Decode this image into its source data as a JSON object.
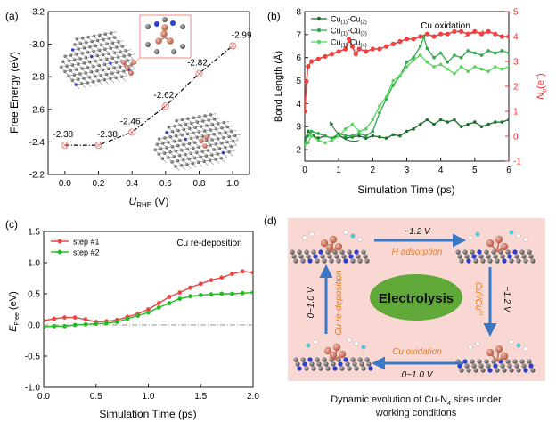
{
  "colors": {
    "axis": "#1a1a1a",
    "panel_a_line": "#000000",
    "panel_a_marker": "#f08a8a",
    "inset_border": "#f08a8a",
    "cu_atom": "#d4806a",
    "carbon_atom": "#6e6e6e",
    "nitrogen_atom": "#2a3fcf",
    "red_series": "#f04040",
    "dark_green": "#1f6e2e",
    "mid_green": "#2fa84f",
    "light_green": "#55d65a",
    "right_axis_red": "#ff2a2a",
    "step1": "#ee4444",
    "step2": "#22bb22",
    "refline": "#8a9a8a",
    "panel_d_bg": "#f9d7d2",
    "ellipse": "#60a838",
    "arrow_blue": "#3a78c6",
    "orange_text": "#e87a1c"
  },
  "panels": {
    "a": {
      "letter": "(a)"
    },
    "b": {
      "letter": "(b)"
    },
    "c": {
      "letter": "(c)"
    },
    "d": {
      "letter": "(d)"
    }
  },
  "chart_data": [
    {
      "id": "a",
      "type": "line",
      "title": "",
      "ylabel": "Free Energy (eV)",
      "xlabel": {
        "main": "U",
        "sub": "RHE",
        "unit": " (V)"
      },
      "xlim": [
        -0.1,
        1.1
      ],
      "ylim": [
        -2.2,
        -3.2
      ],
      "y_inverted": true,
      "xticks": [
        "0.0",
        "0.2",
        "0.4",
        "0.6",
        "0.8",
        "1.0"
      ],
      "yticks": [
        "-3.2",
        "-3.0",
        "-2.8",
        "-2.6",
        "-2.4",
        "-2.2"
      ],
      "x": [
        0.0,
        0.2,
        0.4,
        0.6,
        0.8,
        1.0
      ],
      "y": [
        -2.38,
        -2.38,
        -2.46,
        -2.62,
        -2.82,
        -2.99
      ],
      "point_labels": [
        "-2.38",
        "-2.38",
        "-2.46",
        "-2.62",
        "-2.82",
        "-2.99"
      ]
    },
    {
      "id": "b",
      "type": "line",
      "title": "Cu oxidation",
      "xlabel": "Simulation Time (ps)",
      "ylabel": "Bond Length (Å)",
      "ylabel_right": {
        "main": "N",
        "sub": "e",
        "unit": "(e",
        "sup": "−",
        "close": ")"
      },
      "xlim": [
        0,
        6
      ],
      "ylim": [
        1.5,
        8
      ],
      "y2lim": [
        -1,
        5
      ],
      "xticks": [
        "0",
        "1",
        "2",
        "3",
        "4",
        "5",
        "6"
      ],
      "yticks": [
        "2",
        "3",
        "4",
        "5",
        "6",
        "7",
        "8"
      ],
      "y2ticks": [
        "-1",
        "0",
        "1",
        "2",
        "3",
        "4",
        "5"
      ],
      "legend": [
        {
          "pre": "Cu",
          "s1": "(1)",
          "mid": "-Cu",
          "s2": "(2)"
        },
        {
          "pre": "Cu",
          "s1": "(1)",
          "mid": "-Cu",
          "s2": "(3)"
        },
        {
          "pre": "Cu",
          "s1": "(1)",
          "mid": "-Cu",
          "s2": "(4)"
        }
      ],
      "series": [
        {
          "name": "Cu(1)-Cu(2)",
          "axis": "left",
          "x": [
            0,
            0.1,
            0.25,
            0.4,
            0.6,
            0.8,
            1.0,
            1.2,
            1.4,
            1.6,
            1.8,
            2.0,
            2.2,
            2.4,
            2.6,
            2.8,
            3.0,
            3.2,
            3.4,
            3.6,
            3.8,
            4.0,
            4.2,
            4.4,
            4.6,
            4.8,
            5.0,
            5.2,
            5.4,
            5.6,
            5.8,
            6.0
          ],
          "y": [
            2.4,
            2.8,
            2.6,
            2.5,
            2.6,
            2.5,
            2.6,
            2.5,
            2.55,
            2.6,
            2.5,
            2.6,
            2.55,
            2.5,
            2.65,
            2.6,
            2.8,
            2.9,
            3.1,
            3.3,
            3.1,
            3.3,
            3.2,
            3.3,
            3.0,
            3.1,
            3.2,
            3.0,
            3.1,
            3.2,
            3.2,
            3.3
          ]
        },
        {
          "name": "Cu(1)-Cu(3)",
          "axis": "left",
          "x": [
            0,
            0.1,
            0.2,
            0.4,
            0.6,
            0.8,
            1.0,
            1.2,
            1.4,
            1.6,
            1.8,
            2.0,
            2.2,
            2.4,
            2.6,
            2.8,
            3.0,
            3.2,
            3.4,
            3.5,
            3.6,
            3.8,
            4.0,
            4.2,
            4.4,
            4.6,
            4.8,
            5.0,
            5.2,
            5.4,
            5.6,
            5.8,
            6.0
          ],
          "y": [
            2.3,
            2.6,
            2.8,
            2.7,
            2.6,
            2.5,
            2.7,
            2.6,
            2.6,
            2.7,
            2.6,
            2.8,
            3.6,
            4.2,
            4.8,
            5.2,
            5.8,
            6.0,
            6.5,
            6.9,
            6.4,
            6.0,
            6.2,
            5.8,
            6.1,
            6.0,
            6.3,
            6.2,
            6.1,
            6.3,
            6.2,
            6.3,
            6.2
          ]
        },
        {
          "name": "Cu(1)-Cu(4)",
          "axis": "left",
          "x": [
            0,
            0.1,
            0.2,
            0.4,
            0.6,
            0.8,
            1.0,
            1.2,
            1.4,
            1.6,
            1.8,
            2.0,
            2.2,
            2.4,
            2.6,
            2.8,
            3.0,
            3.2,
            3.4,
            3.6,
            3.8,
            4.0,
            4.2,
            4.4,
            4.6,
            4.8,
            5.0,
            5.2,
            5.4,
            5.6,
            5.8,
            6.0
          ],
          "y": [
            2.2,
            2.3,
            2.6,
            2.4,
            2.3,
            2.4,
            2.6,
            2.9,
            3.1,
            2.8,
            2.9,
            3.3,
            3.9,
            4.3,
            5.0,
            5.2,
            5.6,
            5.9,
            6.1,
            5.8,
            5.6,
            5.7,
            5.5,
            5.3,
            5.6,
            5.4,
            5.6,
            5.5,
            5.4,
            5.6,
            5.5,
            5.6
          ]
        },
        {
          "name": "Ne",
          "axis": "right",
          "x": [
            0,
            0.05,
            0.1,
            0.2,
            0.4,
            0.6,
            0.8,
            1.0,
            1.2,
            1.3,
            1.4,
            1.5,
            1.6,
            1.8,
            2.0,
            2.2,
            2.4,
            2.6,
            2.8,
            3.0,
            3.2,
            3.4,
            3.6,
            3.8,
            4.0,
            4.2,
            4.4,
            4.6,
            4.8,
            5.0,
            5.2,
            5.4,
            5.6,
            5.8,
            6.0
          ],
          "y": [
            1.0,
            2.2,
            2.8,
            3.0,
            3.1,
            3.2,
            3.3,
            3.4,
            3.5,
            3.9,
            3.6,
            3.3,
            3.5,
            3.4,
            3.5,
            3.5,
            3.6,
            3.7,
            3.8,
            3.9,
            3.9,
            4.0,
            4.1,
            4.0,
            4.1,
            4.1,
            4.2,
            4.2,
            4.1,
            4.2,
            4.1,
            4.2,
            4.1,
            4.0,
            4.0
          ]
        }
      ]
    },
    {
      "id": "c",
      "type": "line",
      "title": "Cu re-deposition",
      "xlabel": "Simulation Time (ps)",
      "ylabel": {
        "main": "E",
        "sub": "Free",
        "unit": " (eV)"
      },
      "xlim": [
        0,
        2
      ],
      "ylim": [
        -1.0,
        1.5
      ],
      "xticks": [
        "0.0",
        "0.5",
        "1.0",
        "1.5",
        "2.0"
      ],
      "yticks": [
        "-1.0",
        "-0.5",
        "0.0",
        "0.5",
        "1.0",
        "1.5"
      ],
      "reference_line": 0,
      "legend": [
        "step #1",
        "step #2"
      ],
      "series": [
        {
          "name": "step #1",
          "x": [
            0.0,
            0.1,
            0.2,
            0.3,
            0.4,
            0.5,
            0.6,
            0.7,
            0.8,
            0.9,
            1.0,
            1.1,
            1.2,
            1.3,
            1.4,
            1.5,
            1.6,
            1.7,
            1.8,
            1.9,
            2.0
          ],
          "y": [
            0.07,
            0.1,
            0.12,
            0.12,
            0.09,
            0.05,
            0.06,
            0.08,
            0.13,
            0.18,
            0.25,
            0.35,
            0.45,
            0.52,
            0.6,
            0.66,
            0.72,
            0.76,
            0.82,
            0.86,
            0.84
          ]
        },
        {
          "name": "step #2",
          "x": [
            0.0,
            0.1,
            0.2,
            0.3,
            0.4,
            0.5,
            0.6,
            0.7,
            0.8,
            0.9,
            1.0,
            1.1,
            1.2,
            1.3,
            1.4,
            1.5,
            1.6,
            1.7,
            1.8,
            1.9,
            2.0
          ],
          "y": [
            -0.03,
            -0.02,
            -0.02,
            0.0,
            0.01,
            0.02,
            0.03,
            0.05,
            0.1,
            0.15,
            0.2,
            0.28,
            0.35,
            0.42,
            0.46,
            0.48,
            0.49,
            0.5,
            0.5,
            0.51,
            0.52
          ]
        }
      ]
    }
  ],
  "panel_d": {
    "center_label": "Electrolysis",
    "top_voltage": "−1.2 V",
    "top_process": "H adsorption",
    "right_voltage": "−1.2 V",
    "right_process": {
      "pre": "Cu",
      "sup": "0",
      "mid": "/Cu",
      "sup2": "δ+"
    },
    "bottom_process": "Cu oxidation",
    "bottom_voltage": "0~1.0 V",
    "left_voltage": "0~1.0 V",
    "left_process": "Cu re-deposition",
    "caption_line1": "Dynamic evolution of Cu-N",
    "caption_sub": "4",
    "caption_line1_end": " sites under",
    "caption_line2": "working conditions"
  }
}
